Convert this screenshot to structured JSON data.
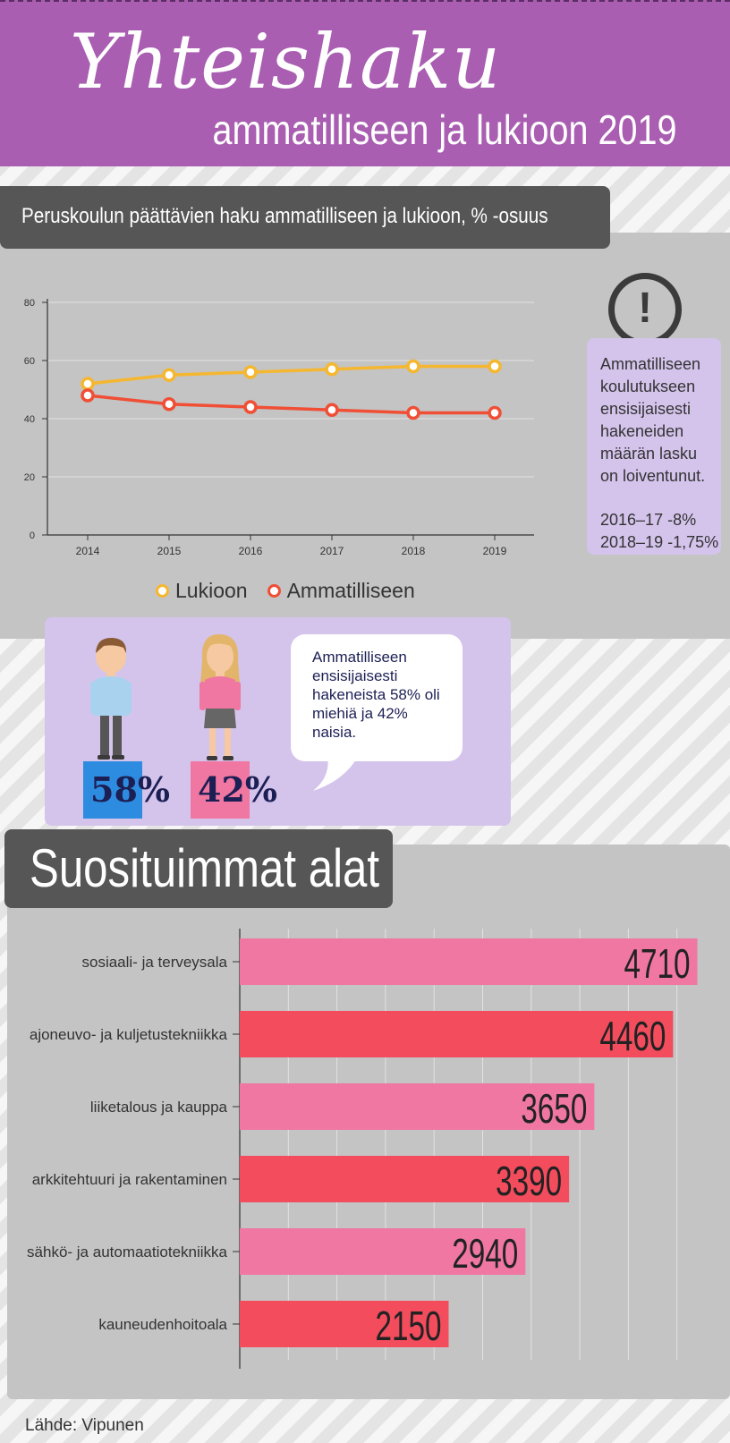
{
  "header": {
    "title": "Yhteishaku",
    "subtitle": "ammatilliseen ja lukioon 2019"
  },
  "section1": {
    "title": "Peruskoulun päättävien haku ammatilliseen ja lukioon, % -osuus"
  },
  "alert": {
    "icon": "exclamation-icon",
    "text": "Ammatilliseen koulutukseen ensisijaisesti hakeneiden määrän lasku on loiventunut.",
    "stat1": "2016–17  -8%",
    "stat2": "2018–19  -1,75%"
  },
  "gender": {
    "male_pct": "58%",
    "female_pct": "42%",
    "male_color": "#2e8ce0",
    "female_color": "#ef77a1",
    "bubble_text": "Ammatilliseen ensisijaisesti hakeneista 58% oli miehiä ja 42% naisia."
  },
  "section2": {
    "title": "Suosituimmat alat"
  },
  "source": "Lähde: Vipunen",
  "colors": {
    "header_bg": "#a95eb1",
    "lukioon": "#f5b730",
    "ammatilliseen": "#f04e35",
    "bar_pink": "#ef77a1",
    "bar_red": "#f24c5d"
  },
  "chart_data": [
    {
      "type": "line",
      "title": "Peruskoulun päättävien haku ammatilliseen ja lukioon, % -osuus",
      "x": [
        "2014",
        "2015",
        "2016",
        "2017",
        "2018",
        "2019"
      ],
      "series": [
        {
          "name": "Lukioon",
          "values": [
            52,
            55,
            56,
            57,
            58,
            58
          ],
          "color": "#f5b730"
        },
        {
          "name": "Ammatilliseen",
          "values": [
            48,
            45,
            44,
            43,
            42,
            42
          ],
          "color": "#f04e35"
        }
      ],
      "yticks": [
        "0",
        "20",
        "40",
        "60",
        "80"
      ],
      "ylim": [
        0,
        80
      ],
      "grid": true,
      "legend": "bottom"
    },
    {
      "type": "bar",
      "orientation": "horizontal",
      "title": "Suosituimmat alat",
      "categories": [
        "sosiaali- ja terveysala",
        "ajoneuvo- ja kuljetustekniikka",
        "liiketalous ja kauppa",
        "arkkitehtuuri ja rakentaminen",
        "sähkö- ja automaatiotekniikka",
        "kauneudenhoitoala"
      ],
      "values": [
        4710,
        4460,
        3650,
        3390,
        2940,
        2150
      ],
      "labels": [
        "4710",
        "4460",
        "3650",
        "3390",
        "2940",
        "2150"
      ],
      "xlim": [
        0,
        5000
      ],
      "grid": true
    }
  ]
}
